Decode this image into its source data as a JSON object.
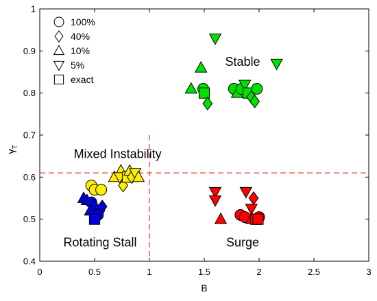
{
  "chart_data": {
    "type": "scatter",
    "xlabel": "B",
    "ylabel": "γ",
    "ylabel_sub": "T",
    "xlim": [
      0,
      3
    ],
    "ylim": [
      0.4,
      1.0
    ],
    "xticks": [
      0,
      0.5,
      1,
      1.5,
      2,
      2.5,
      3
    ],
    "xtick_labels": [
      "0",
      "0.5",
      "1",
      "1.5",
      "2",
      "2.5",
      "3"
    ],
    "yticks": [
      0.4,
      0.5,
      0.6,
      0.7,
      0.8,
      0.9,
      1.0
    ],
    "ytick_labels": [
      "0.4",
      "0.5",
      "0.6",
      "0.7",
      "0.8",
      "0.9",
      "1"
    ],
    "grid": false,
    "legend": {
      "placement": "top-left",
      "entries": [
        {
          "marker": "circle",
          "label": "100%"
        },
        {
          "marker": "diamond",
          "label": "40%"
        },
        {
          "marker": "triangle-up",
          "label": "10%"
        },
        {
          "marker": "triangle-down",
          "label": "5%"
        },
        {
          "marker": "square",
          "label": "exact"
        }
      ]
    },
    "reference_lines": [
      {
        "orientation": "vertical",
        "value": 1.0,
        "color": "#ff3b3b"
      },
      {
        "orientation": "horizontal",
        "value": 0.61,
        "color": "#ff3b3b"
      }
    ],
    "annotations": [
      {
        "text": "Stable",
        "x": 1.85,
        "y": 0.865
      },
      {
        "text": "Mixed Instability",
        "x": 0.71,
        "y": 0.645
      },
      {
        "text": "Rotating Stall",
        "x": 0.55,
        "y": 0.435
      },
      {
        "text": "Surge",
        "x": 1.85,
        "y": 0.435
      }
    ],
    "groups": [
      {
        "region": "Stable",
        "color": "#00e100",
        "points": [
          {
            "marker": "triangle-down",
            "x": 1.6,
            "y": 0.93
          },
          {
            "marker": "triangle-down",
            "x": 2.16,
            "y": 0.87
          },
          {
            "marker": "triangle-up",
            "x": 1.47,
            "y": 0.86
          },
          {
            "marker": "triangle-up",
            "x": 1.38,
            "y": 0.81
          },
          {
            "marker": "circle",
            "x": 1.49,
            "y": 0.81
          },
          {
            "marker": "square",
            "x": 1.5,
            "y": 0.8
          },
          {
            "marker": "diamond",
            "x": 1.53,
            "y": 0.775
          },
          {
            "marker": "circle",
            "x": 1.77,
            "y": 0.81
          },
          {
            "marker": "triangle-up",
            "x": 1.8,
            "y": 0.8
          },
          {
            "marker": "circle",
            "x": 1.84,
            "y": 0.81
          },
          {
            "marker": "triangle-down",
            "x": 1.87,
            "y": 0.82
          },
          {
            "marker": "square",
            "x": 1.9,
            "y": 0.8
          },
          {
            "marker": "diamond",
            "x": 1.93,
            "y": 0.79
          },
          {
            "marker": "diamond",
            "x": 1.96,
            "y": 0.78
          },
          {
            "marker": "circle",
            "x": 1.98,
            "y": 0.81
          }
        ]
      },
      {
        "region": "Mixed Instability",
        "color": "#ffee00",
        "points": [
          {
            "marker": "circle",
            "x": 0.47,
            "y": 0.58
          },
          {
            "marker": "circle",
            "x": 0.5,
            "y": 0.57
          },
          {
            "marker": "circle",
            "x": 0.56,
            "y": 0.57
          },
          {
            "marker": "triangle-up",
            "x": 0.68,
            "y": 0.6
          },
          {
            "marker": "triangle-up",
            "x": 0.74,
            "y": 0.615
          },
          {
            "marker": "triangle-down",
            "x": 0.73,
            "y": 0.6
          },
          {
            "marker": "diamond",
            "x": 0.76,
            "y": 0.58
          },
          {
            "marker": "square",
            "x": 0.8,
            "y": 0.6
          },
          {
            "marker": "triangle-up",
            "x": 0.82,
            "y": 0.615
          },
          {
            "marker": "diamond",
            "x": 0.84,
            "y": 0.6
          },
          {
            "marker": "triangle-down",
            "x": 0.87,
            "y": 0.61
          },
          {
            "marker": "triangle-up",
            "x": 0.9,
            "y": 0.6
          }
        ]
      },
      {
        "region": "Rotating Stall",
        "color": "#0000e1",
        "points": [
          {
            "marker": "triangle-up",
            "x": 0.4,
            "y": 0.55
          },
          {
            "marker": "triangle-up",
            "x": 0.43,
            "y": 0.545
          },
          {
            "marker": "circle",
            "x": 0.47,
            "y": 0.54
          },
          {
            "marker": "diamond",
            "x": 0.5,
            "y": 0.53
          },
          {
            "marker": "triangle-up",
            "x": 0.46,
            "y": 0.52
          },
          {
            "marker": "diamond",
            "x": 0.55,
            "y": 0.52
          },
          {
            "marker": "circle",
            "x": 0.53,
            "y": 0.51
          },
          {
            "marker": "diamond",
            "x": 0.57,
            "y": 0.53
          },
          {
            "marker": "square",
            "x": 0.5,
            "y": 0.5
          }
        ]
      },
      {
        "region": "Surge",
        "color": "#ff0000",
        "points": [
          {
            "marker": "triangle-down",
            "x": 1.6,
            "y": 0.565
          },
          {
            "marker": "triangle-down",
            "x": 1.6,
            "y": 0.545
          },
          {
            "marker": "triangle-down",
            "x": 1.88,
            "y": 0.565
          },
          {
            "marker": "diamond",
            "x": 1.95,
            "y": 0.55
          },
          {
            "marker": "triangle-down",
            "x": 1.93,
            "y": 0.525
          },
          {
            "marker": "triangle-up",
            "x": 1.65,
            "y": 0.5
          },
          {
            "marker": "circle",
            "x": 1.83,
            "y": 0.51
          },
          {
            "marker": "circle",
            "x": 1.87,
            "y": 0.505
          },
          {
            "marker": "triangle-up",
            "x": 1.93,
            "y": 0.5
          },
          {
            "marker": "square",
            "x": 1.97,
            "y": 0.5
          },
          {
            "marker": "circle",
            "x": 2.0,
            "y": 0.505
          },
          {
            "marker": "square",
            "x": 1.99,
            "y": 0.5
          }
        ]
      }
    ]
  }
}
